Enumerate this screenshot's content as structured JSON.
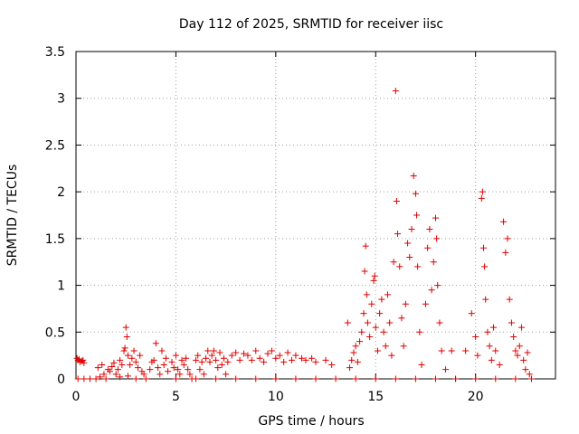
{
  "chart_data": {
    "type": "scatter",
    "title": "Day 112 of 2025, SRMTID for receiver iisc",
    "xlabel": "GPS time / hours",
    "ylabel": "SRMTID / TECUs",
    "xlim": [
      0,
      24
    ],
    "ylim": [
      0,
      3.5
    ],
    "xticks": [
      0,
      5,
      10,
      15,
      20
    ],
    "yticks": [
      0,
      0.5,
      1,
      1.5,
      2,
      2.5,
      3,
      3.5
    ],
    "xtick_labels": [
      "0",
      "5",
      "10",
      "15",
      "20"
    ],
    "ytick_labels": [
      "0",
      "0.5",
      "1",
      "1.5",
      "2",
      "2.5",
      "3",
      "3.5"
    ],
    "grid": true,
    "marker": "+",
    "color": "#e00000",
    "series": [
      {
        "name": "SRMTID",
        "points": [
          [
            0.05,
            0.22
          ],
          [
            0.1,
            0.2
          ],
          [
            0.15,
            0.21
          ],
          [
            0.2,
            0.18
          ],
          [
            0.3,
            0.19
          ],
          [
            0.35,
            0.2
          ],
          [
            0.4,
            0.17
          ],
          [
            0.1,
            0.0
          ],
          [
            0.4,
            0.0
          ],
          [
            0.7,
            0.0
          ],
          [
            1.0,
            0.0
          ],
          [
            1.2,
            0.02
          ],
          [
            1.4,
            0.05
          ],
          [
            1.5,
            0.0
          ],
          [
            1.1,
            0.12
          ],
          [
            1.3,
            0.15
          ],
          [
            1.6,
            0.1
          ],
          [
            1.7,
            0.08
          ],
          [
            1.8,
            0.13
          ],
          [
            1.9,
            0.17
          ],
          [
            2.0,
            0.05
          ],
          [
            2.1,
            0.1
          ],
          [
            2.2,
            0.2
          ],
          [
            2.3,
            0.15
          ],
          [
            2.4,
            0.3
          ],
          [
            2.45,
            0.33
          ],
          [
            2.5,
            0.55
          ],
          [
            2.55,
            0.45
          ],
          [
            2.6,
            0.25
          ],
          [
            2.7,
            0.15
          ],
          [
            2.8,
            0.22
          ],
          [
            2.9,
            0.3
          ],
          [
            3.0,
            0.18
          ],
          [
            3.1,
            0.12
          ],
          [
            3.2,
            0.25
          ],
          [
            3.3,
            0.08
          ],
          [
            3.4,
            0.05
          ],
          [
            2.2,
            0.02
          ],
          [
            2.6,
            0.03
          ],
          [
            3.0,
            0.0
          ],
          [
            3.5,
            0.0
          ],
          [
            3.7,
            0.1
          ],
          [
            3.8,
            0.18
          ],
          [
            3.9,
            0.2
          ],
          [
            4.0,
            0.38
          ],
          [
            4.1,
            0.12
          ],
          [
            4.2,
            0.05
          ],
          [
            4.3,
            0.3
          ],
          [
            4.4,
            0.15
          ],
          [
            4.5,
            0.22
          ],
          [
            4.6,
            0.08
          ],
          [
            4.8,
            0.18
          ],
          [
            4.9,
            0.12
          ],
          [
            5.0,
            0.25
          ],
          [
            5.1,
            0.1
          ],
          [
            5.2,
            0.05
          ],
          [
            5.3,
            0.2
          ],
          [
            5.4,
            0.15
          ],
          [
            5.5,
            0.22
          ],
          [
            5.6,
            0.1
          ],
          [
            5.7,
            0.05
          ],
          [
            5.8,
            0.0
          ],
          [
            6.0,
            0.2
          ],
          [
            6.1,
            0.25
          ],
          [
            6.2,
            0.1
          ],
          [
            6.3,
            0.18
          ],
          [
            6.4,
            0.05
          ],
          [
            6.5,
            0.22
          ],
          [
            6.6,
            0.3
          ],
          [
            6.7,
            0.18
          ],
          [
            6.8,
            0.25
          ],
          [
            6.9,
            0.3
          ],
          [
            7.0,
            0.2
          ],
          [
            7.1,
            0.12
          ],
          [
            7.2,
            0.28
          ],
          [
            7.3,
            0.15
          ],
          [
            7.4,
            0.22
          ],
          [
            7.5,
            0.05
          ],
          [
            7.6,
            0.18
          ],
          [
            7.8,
            0.25
          ],
          [
            8.0,
            0.28
          ],
          [
            8.2,
            0.2
          ],
          [
            8.4,
            0.27
          ],
          [
            8.6,
            0.25
          ],
          [
            8.8,
            0.2
          ],
          [
            9.0,
            0.3
          ],
          [
            9.2,
            0.22
          ],
          [
            9.4,
            0.18
          ],
          [
            9.6,
            0.27
          ],
          [
            9.8,
            0.3
          ],
          [
            10.0,
            0.22
          ],
          [
            10.2,
            0.25
          ],
          [
            10.4,
            0.18
          ],
          [
            10.6,
            0.28
          ],
          [
            10.8,
            0.2
          ],
          [
            11.0,
            0.25
          ],
          [
            11.3,
            0.22
          ],
          [
            11.5,
            0.2
          ],
          [
            11.8,
            0.22
          ],
          [
            12.0,
            0.18
          ],
          [
            12.5,
            0.2
          ],
          [
            12.8,
            0.15
          ],
          [
            5.0,
            0.0
          ],
          [
            6.0,
            0.0
          ],
          [
            7.0,
            0.0
          ],
          [
            8.0,
            0.0
          ],
          [
            9.0,
            0.0
          ],
          [
            10.0,
            0.0
          ],
          [
            11.0,
            0.0
          ],
          [
            12.0,
            0.0
          ],
          [
            13.0,
            0.0
          ],
          [
            13.6,
            0.6
          ],
          [
            13.7,
            0.12
          ],
          [
            13.8,
            0.2
          ],
          [
            13.9,
            0.28
          ],
          [
            14.0,
            0.35
          ],
          [
            14.1,
            0.18
          ],
          [
            14.2,
            0.4
          ],
          [
            14.3,
            0.5
          ],
          [
            14.4,
            0.7
          ],
          [
            14.45,
            1.15
          ],
          [
            14.5,
            1.42
          ],
          [
            14.55,
            0.9
          ],
          [
            14.6,
            0.6
          ],
          [
            14.7,
            0.45
          ],
          [
            14.8,
            0.8
          ],
          [
            14.9,
            1.05
          ],
          [
            14.95,
            1.1
          ],
          [
            15.0,
            0.55
          ],
          [
            15.1,
            0.3
          ],
          [
            15.2,
            0.7
          ],
          [
            15.3,
            0.85
          ],
          [
            15.4,
            0.5
          ],
          [
            15.5,
            0.35
          ],
          [
            15.6,
            0.9
          ],
          [
            15.7,
            0.6
          ],
          [
            15.8,
            0.25
          ],
          [
            15.9,
            1.25
          ],
          [
            16.0,
            3.08
          ],
          [
            16.05,
            1.9
          ],
          [
            16.1,
            1.55
          ],
          [
            16.2,
            1.2
          ],
          [
            16.3,
            0.65
          ],
          [
            16.4,
            0.35
          ],
          [
            16.5,
            0.8
          ],
          [
            16.6,
            1.45
          ],
          [
            16.7,
            1.3
          ],
          [
            16.8,
            1.6
          ],
          [
            16.9,
            2.17
          ],
          [
            17.0,
            1.98
          ],
          [
            17.05,
            1.75
          ],
          [
            17.1,
            1.2
          ],
          [
            17.2,
            0.5
          ],
          [
            17.3,
            0.15
          ],
          [
            17.5,
            0.8
          ],
          [
            17.6,
            1.4
          ],
          [
            17.7,
            1.6
          ],
          [
            17.8,
            0.95
          ],
          [
            17.9,
            1.25
          ],
          [
            18.0,
            1.72
          ],
          [
            18.05,
            1.5
          ],
          [
            18.1,
            1.0
          ],
          [
            18.2,
            0.6
          ],
          [
            18.3,
            0.3
          ],
          [
            18.5,
            0.1
          ],
          [
            18.8,
            0.3
          ],
          [
            19.0,
            0.0
          ],
          [
            19.5,
            0.3
          ],
          [
            19.8,
            0.7
          ],
          [
            20.0,
            0.45
          ],
          [
            20.1,
            0.25
          ],
          [
            20.3,
            1.93
          ],
          [
            20.35,
            2.0
          ],
          [
            20.4,
            1.4
          ],
          [
            20.45,
            1.2
          ],
          [
            20.5,
            0.85
          ],
          [
            20.6,
            0.5
          ],
          [
            20.7,
            0.35
          ],
          [
            20.8,
            0.2
          ],
          [
            20.9,
            0.55
          ],
          [
            21.0,
            0.3
          ],
          [
            21.2,
            0.15
          ],
          [
            21.4,
            1.68
          ],
          [
            21.5,
            1.35
          ],
          [
            21.6,
            1.5
          ],
          [
            21.7,
            0.85
          ],
          [
            21.8,
            0.6
          ],
          [
            21.9,
            0.45
          ],
          [
            22.0,
            0.3
          ],
          [
            22.1,
            0.25
          ],
          [
            22.2,
            0.35
          ],
          [
            22.3,
            0.55
          ],
          [
            22.4,
            0.2
          ],
          [
            22.5,
            0.1
          ],
          [
            22.6,
            0.28
          ],
          [
            22.7,
            0.05
          ],
          [
            22.8,
            0.0
          ],
          [
            14.0,
            0.0
          ],
          [
            15.0,
            0.0
          ],
          [
            16.0,
            0.0
          ],
          [
            17.0,
            0.0
          ],
          [
            18.0,
            0.0
          ],
          [
            19.0,
            0.0
          ],
          [
            20.0,
            0.0
          ],
          [
            21.0,
            0.0
          ],
          [
            22.0,
            0.0
          ]
        ]
      }
    ]
  }
}
